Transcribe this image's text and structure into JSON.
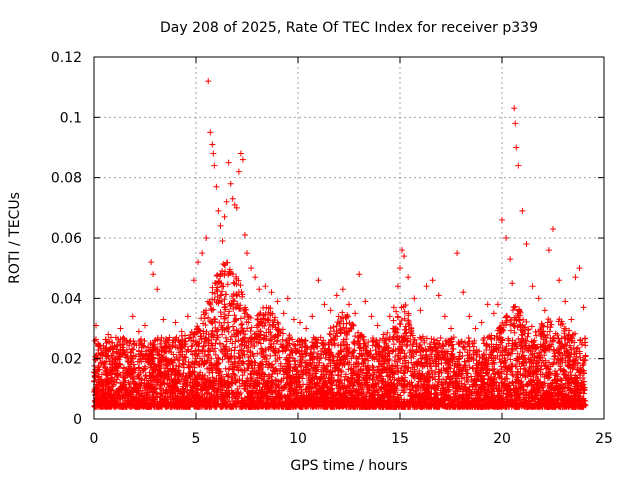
{
  "chart_data": {
    "type": "scatter",
    "title": "Day 208 of 2025, Rate Of TEC Index for receiver p339",
    "xlabel": "GPS time / hours",
    "ylabel": "ROTI / TECUs",
    "xlim": [
      0,
      25
    ],
    "ylim": [
      0,
      0.12
    ],
    "xticks": [
      "0",
      "5",
      "10",
      "15",
      "20",
      "25"
    ],
    "yticks": [
      "0",
      "0.02",
      "0.04",
      "0.06",
      "0.08",
      "0.1",
      "0.12"
    ],
    "grid": true,
    "marker": "+",
    "color": "#ff0000",
    "series": [
      {
        "name": "ROTI",
        "x": [
          0.1,
          0.2,
          0.4,
          0.7,
          1.0,
          1.3,
          1.6,
          1.9,
          2.2,
          2.5,
          2.8,
          2.9,
          3.1,
          3.4,
          3.7,
          4.0,
          4.3,
          4.6,
          4.9,
          5.1,
          5.3,
          5.5,
          5.6,
          5.7,
          5.8,
          5.85,
          5.9,
          6.0,
          6.1,
          6.2,
          6.3,
          6.4,
          6.5,
          6.6,
          6.7,
          6.8,
          6.9,
          7.0,
          7.1,
          7.2,
          7.3,
          7.4,
          7.5,
          7.7,
          7.9,
          8.1,
          8.4,
          8.7,
          9.0,
          9.3,
          9.5,
          9.8,
          10.1,
          10.4,
          10.7,
          11.0,
          11.3,
          11.6,
          11.9,
          12.2,
          12.5,
          12.8,
          13.0,
          13.3,
          13.6,
          13.9,
          14.2,
          14.5,
          14.7,
          14.9,
          15.0,
          15.1,
          15.2,
          15.4,
          15.7,
          16.0,
          16.3,
          16.6,
          16.9,
          17.2,
          17.5,
          17.8,
          18.1,
          18.4,
          18.7,
          19.0,
          19.3,
          19.6,
          19.8,
          20.0,
          20.2,
          20.4,
          20.5,
          20.6,
          20.65,
          20.7,
          20.8,
          21.0,
          21.2,
          21.5,
          21.8,
          22.1,
          22.3,
          22.5,
          22.8,
          23.1,
          23.4,
          23.6,
          23.8,
          24.0
        ],
        "y": [
          0.031,
          0.025,
          0.022,
          0.028,
          0.024,
          0.03,
          0.026,
          0.034,
          0.029,
          0.031,
          0.052,
          0.048,
          0.043,
          0.033,
          0.027,
          0.032,
          0.029,
          0.034,
          0.046,
          0.052,
          0.055,
          0.06,
          0.112,
          0.095,
          0.091,
          0.088,
          0.084,
          0.077,
          0.069,
          0.064,
          0.059,
          0.067,
          0.072,
          0.085,
          0.078,
          0.073,
          0.071,
          0.07,
          0.082,
          0.088,
          0.086,
          0.061,
          0.055,
          0.05,
          0.047,
          0.043,
          0.044,
          0.042,
          0.039,
          0.035,
          0.04,
          0.033,
          0.032,
          0.03,
          0.034,
          0.046,
          0.038,
          0.036,
          0.041,
          0.043,
          0.038,
          0.035,
          0.048,
          0.039,
          0.034,
          0.031,
          0.028,
          0.034,
          0.037,
          0.044,
          0.05,
          0.056,
          0.054,
          0.047,
          0.04,
          0.036,
          0.044,
          0.046,
          0.041,
          0.034,
          0.03,
          0.055,
          0.042,
          0.034,
          0.03,
          0.032,
          0.038,
          0.035,
          0.038,
          0.066,
          0.06,
          0.053,
          0.045,
          0.103,
          0.098,
          0.09,
          0.084,
          0.069,
          0.058,
          0.044,
          0.04,
          0.036,
          0.056,
          0.063,
          0.046,
          0.039,
          0.033,
          0.047,
          0.05,
          0.037
        ]
      }
    ]
  }
}
